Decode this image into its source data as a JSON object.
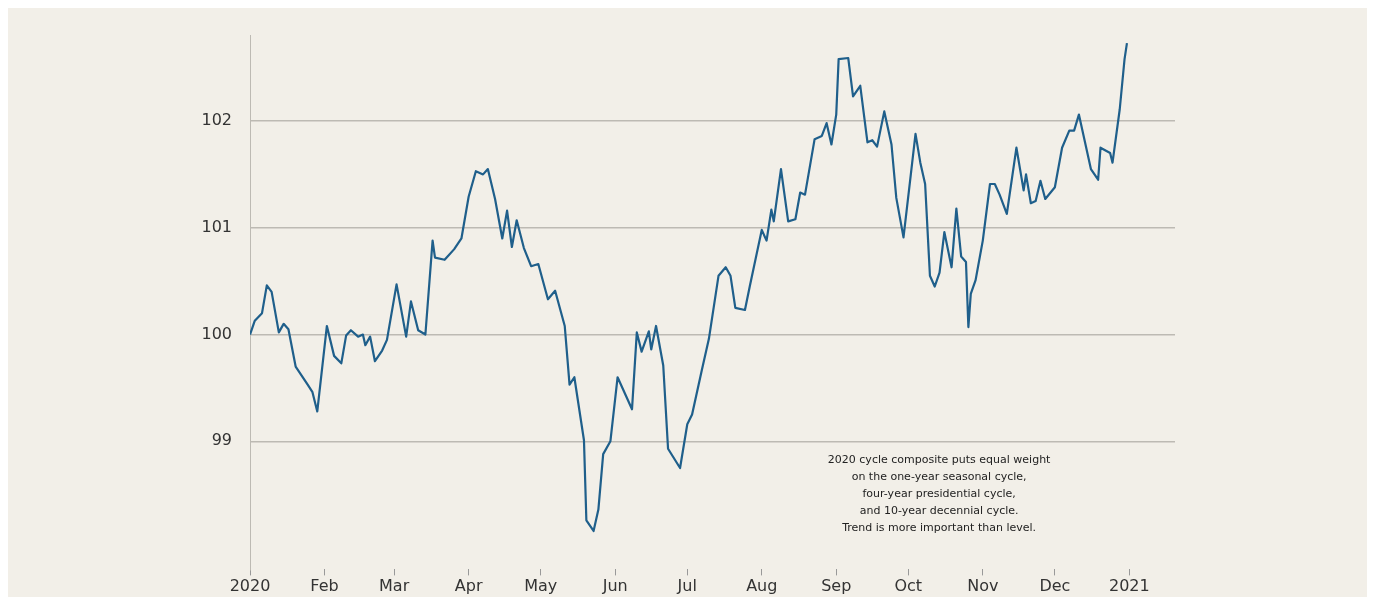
{
  "chart_data": {
    "type": "line",
    "color": "#1f5f8b",
    "grid": "y",
    "legend": false,
    "xlim": [
      "2020-01-01",
      "2021-01-20"
    ],
    "xticks": [
      {
        "value": "2020-01-01",
        "label": "2020"
      },
      {
        "value": "2020-02-01",
        "label": "Feb"
      },
      {
        "value": "2020-03-01",
        "label": "Mar"
      },
      {
        "value": "2020-04-01",
        "label": "Apr"
      },
      {
        "value": "2020-05-01",
        "label": "May"
      },
      {
        "value": "2020-06-01",
        "label": "Jun"
      },
      {
        "value": "2020-07-01",
        "label": "Jul"
      },
      {
        "value": "2020-08-01",
        "label": "Aug"
      },
      {
        "value": "2020-09-01",
        "label": "Sep"
      },
      {
        "value": "2020-10-01",
        "label": "Oct"
      },
      {
        "value": "2020-11-01",
        "label": "Nov"
      },
      {
        "value": "2020-12-01",
        "label": "Dec"
      },
      {
        "value": "2021-01-01",
        "label": "2021"
      }
    ],
    "ylim": [
      97.8,
      102.8
    ],
    "yticks": [
      99,
      100,
      101,
      102
    ],
    "x": [
      "2020-01-01",
      "2020-01-03",
      "2020-01-06",
      "2020-01-08",
      "2020-01-10",
      "2020-01-13",
      "2020-01-15",
      "2020-01-17",
      "2020-01-20",
      "2020-01-25",
      "2020-01-27",
      "2020-01-29",
      "2020-02-02",
      "2020-02-05",
      "2020-02-08",
      "2020-02-10",
      "2020-02-12",
      "2020-02-15",
      "2020-02-17",
      "2020-02-18",
      "2020-02-20",
      "2020-02-22",
      "2020-02-25",
      "2020-02-27",
      "2020-03-02",
      "2020-03-06",
      "2020-03-08",
      "2020-03-11",
      "2020-03-14",
      "2020-03-17",
      "2020-03-18",
      "2020-03-22",
      "2020-03-26",
      "2020-03-29",
      "2020-04-01",
      "2020-04-04",
      "2020-04-07",
      "2020-04-09",
      "2020-04-12",
      "2020-04-15",
      "2020-04-17",
      "2020-04-19",
      "2020-04-21",
      "2020-04-24",
      "2020-04-27",
      "2020-04-30",
      "2020-05-04",
      "2020-05-07",
      "2020-05-11",
      "2020-05-13",
      "2020-05-15",
      "2020-05-19",
      "2020-05-20",
      "2020-05-23",
      "2020-05-25",
      "2020-05-27",
      "2020-05-30",
      "2020-06-02",
      "2020-06-05",
      "2020-06-08",
      "2020-06-10",
      "2020-06-12",
      "2020-06-15",
      "2020-06-16",
      "2020-06-18",
      "2020-06-21",
      "2020-06-23",
      "2020-06-28",
      "2020-07-01",
      "2020-07-03",
      "2020-07-07",
      "2020-07-10",
      "2020-07-14",
      "2020-07-17",
      "2020-07-19",
      "2020-07-21",
      "2020-07-25",
      "2020-07-27",
      "2020-08-01",
      "2020-08-03",
      "2020-08-05",
      "2020-08-06",
      "2020-08-09",
      "2020-08-12",
      "2020-08-15",
      "2020-08-17",
      "2020-08-19",
      "2020-08-23",
      "2020-08-26",
      "2020-08-28",
      "2020-08-30",
      "2020-09-01",
      "2020-09-02",
      "2020-09-06",
      "2020-09-08",
      "2020-09-11",
      "2020-09-14",
      "2020-09-16",
      "2020-09-18",
      "2020-09-21",
      "2020-09-24",
      "2020-09-26",
      "2020-09-29",
      "2020-10-02",
      "2020-10-04",
      "2020-10-06",
      "2020-10-08",
      "2020-10-10",
      "2020-10-12",
      "2020-10-14",
      "2020-10-16",
      "2020-10-19",
      "2020-10-21",
      "2020-10-23",
      "2020-10-25",
      "2020-10-26",
      "2020-10-27",
      "2020-10-29",
      "2020-11-01",
      "2020-11-04",
      "2020-11-06",
      "2020-11-08",
      "2020-11-11",
      "2020-11-15",
      "2020-11-18",
      "2020-11-19",
      "2020-11-21",
      "2020-11-23",
      "2020-11-25",
      "2020-11-27",
      "2020-12-01",
      "2020-12-04",
      "2020-12-07",
      "2020-12-09",
      "2020-12-11",
      "2020-12-16",
      "2020-12-19",
      "2020-12-20",
      "2020-12-24",
      "2020-12-25",
      "2020-12-28",
      "2020-12-30",
      "2020-12-31"
    ],
    "values": [
      100.0,
      100.13,
      100.2,
      100.46,
      100.4,
      100.02,
      100.1,
      100.05,
      99.7,
      99.53,
      99.46,
      99.28,
      100.08,
      99.8,
      99.73,
      99.99,
      100.04,
      99.98,
      100.0,
      99.9,
      99.98,
      99.75,
      99.85,
      99.95,
      100.47,
      99.98,
      100.31,
      100.04,
      100.0,
      100.88,
      100.72,
      100.7,
      100.8,
      100.9,
      101.29,
      101.53,
      101.5,
      101.55,
      101.27,
      100.9,
      101.16,
      100.82,
      101.07,
      100.81,
      100.64,
      100.66,
      100.33,
      100.41,
      100.08,
      99.53,
      99.6,
      99.01,
      98.26,
      98.16,
      98.36,
      98.88,
      99.0,
      99.6,
      99.45,
      99.3,
      100.02,
      99.84,
      100.03,
      99.86,
      100.08,
      99.71,
      98.93,
      98.75,
      99.16,
      99.25,
      99.66,
      99.96,
      100.55,
      100.63,
      100.55,
      100.25,
      100.23,
      100.45,
      100.98,
      100.88,
      101.17,
      101.06,
      101.55,
      101.06,
      101.08,
      101.33,
      101.31,
      101.83,
      101.86,
      101.98,
      101.78,
      102.06,
      102.58,
      102.59,
      102.23,
      102.33,
      101.8,
      101.82,
      101.76,
      102.09,
      101.78,
      101.28,
      100.91,
      101.49,
      101.88,
      101.61,
      101.41,
      100.55,
      100.45,
      100.58,
      100.96,
      100.63,
      101.18,
      100.73,
      100.68,
      100.07,
      100.38,
      100.51,
      100.88,
      101.41,
      101.41,
      101.31,
      101.13,
      101.75,
      101.35,
      101.5,
      101.23,
      101.25,
      101.44,
      101.27,
      101.38,
      101.75,
      101.91,
      101.91,
      102.06,
      101.55,
      101.45,
      101.75,
      101.7,
      101.61,
      102.11,
      102.58,
      102.73
    ],
    "annotations": [
      "2020 cycle composite puts equal weight\non the one-year seasonal cycle,\nfour-year presidential cycle,\nand 10-year decennial cycle.\nTrend is more important than level."
    ]
  }
}
